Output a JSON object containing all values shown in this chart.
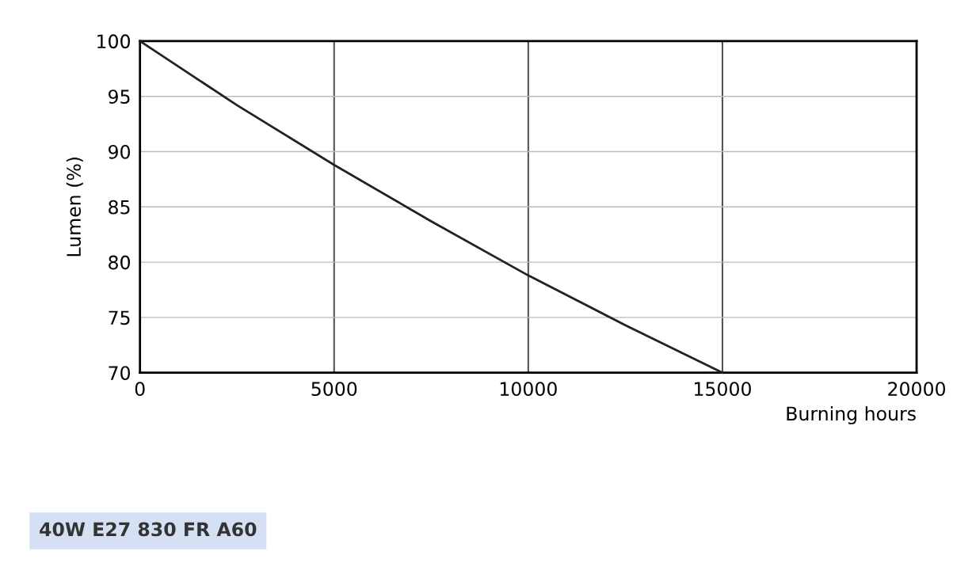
{
  "chart_data": {
    "type": "line",
    "xlabel": "Burning hours",
    "ylabel": "Lumen (%)",
    "x": [
      0,
      2500,
      5000,
      7500,
      10000,
      12500,
      15000
    ],
    "series": [
      {
        "color": "#222222",
        "values": [
          100,
          94.2,
          88.8,
          83.7,
          78.8,
          74.3,
          70
        ]
      }
    ],
    "xlim": [
      0,
      20000
    ],
    "xticks": [
      0,
      5000,
      10000,
      15000,
      20000
    ],
    "ylim": [
      70,
      100
    ],
    "yticks": [
      70,
      75,
      80,
      85,
      90,
      95,
      100
    ],
    "grid": true,
    "marker": "none",
    "line_style": "solid",
    "annotations": [
      "40W E27 830 FR A60"
    ]
  }
}
